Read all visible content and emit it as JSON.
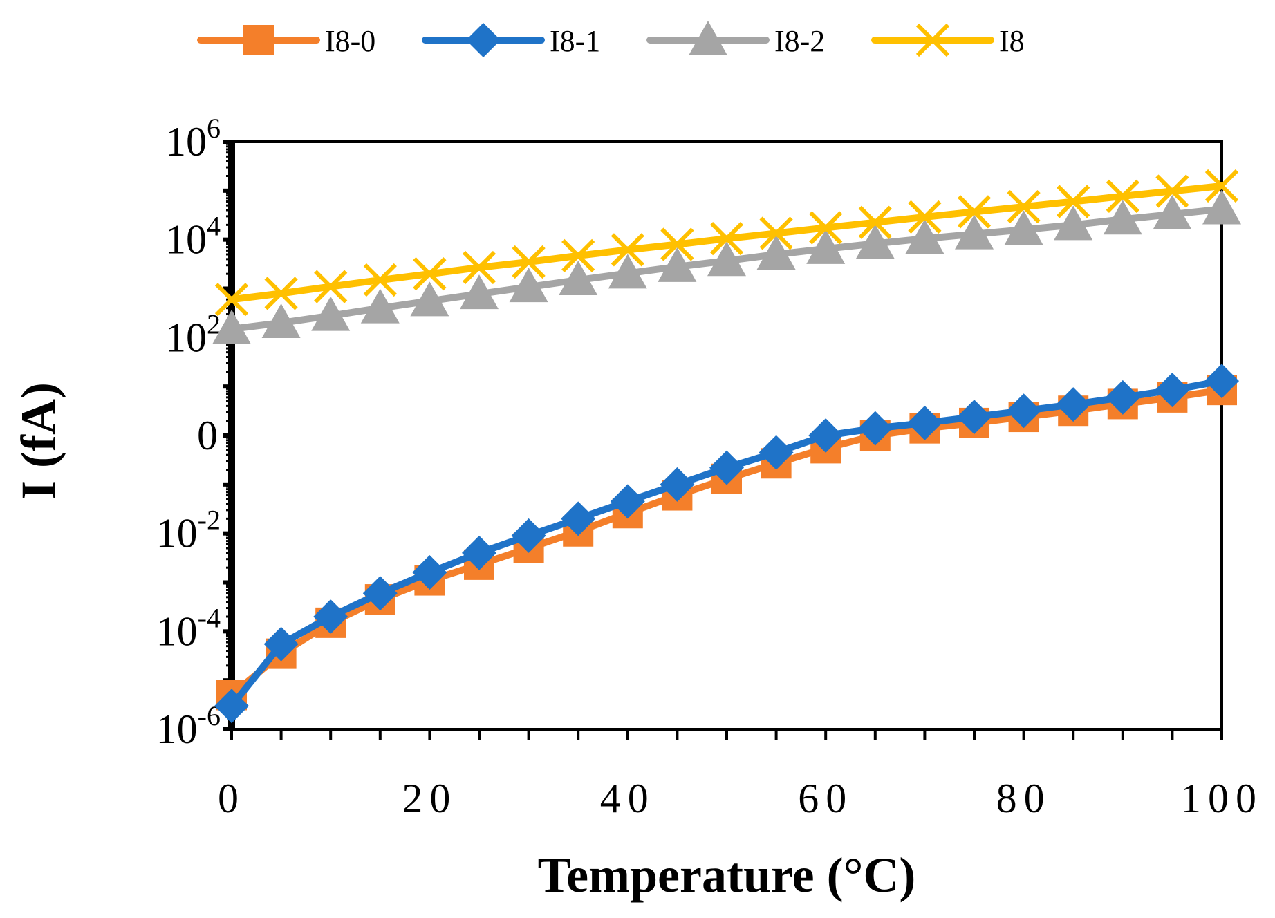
{
  "chart_data": {
    "type": "line",
    "xlabel": "Temperature (°C)",
    "ylabel": "I (fA)",
    "xlim": [
      0,
      100
    ],
    "ylim": [
      1e-06,
      1000000.0
    ],
    "yscale": "log",
    "grid": false,
    "legend_position": "top",
    "x_ticks": [
      "0",
      "20",
      "40",
      "60",
      "80",
      "100"
    ],
    "y_ticks": [
      {
        "base": "10",
        "exp": "6"
      },
      {
        "base": "10",
        "exp": "4"
      },
      {
        "base": "10",
        "exp": "2"
      },
      {
        "base": "0",
        "exp": ""
      },
      {
        "base": "10",
        "exp": "-2"
      },
      {
        "base": "10",
        "exp": "-4"
      },
      {
        "base": "10",
        "exp": "-6"
      }
    ],
    "x": [
      0,
      5,
      10,
      15,
      20,
      25,
      30,
      35,
      40,
      45,
      50,
      55,
      60,
      65,
      70,
      75,
      80,
      85,
      90,
      95,
      100
    ],
    "series": [
      {
        "name": "I8-0",
        "color": "#F47F2A",
        "marker": "square",
        "values": [
          5e-06,
          3.5e-05,
          0.00015,
          0.00045,
          0.0011,
          0.0023,
          0.005,
          0.011,
          0.026,
          0.06,
          0.13,
          0.27,
          0.55,
          1.0,
          1.4,
          1.8,
          2.4,
          3.2,
          4.4,
          6.0,
          8.5
        ]
      },
      {
        "name": "I8-1",
        "color": "#1F73C8",
        "marker": "diamond",
        "values": [
          3e-06,
          5.5e-05,
          0.0002,
          0.0006,
          0.0016,
          0.004,
          0.009,
          0.02,
          0.045,
          0.1,
          0.22,
          0.45,
          1.0,
          1.4,
          1.8,
          2.4,
          3.2,
          4.3,
          6.0,
          8.5,
          13
        ]
      },
      {
        "name": "I8-2",
        "color": "#A5A5A5",
        "marker": "triangle",
        "values": [
          150,
          200,
          280,
          400,
          560,
          780,
          1080,
          1500,
          2050,
          2800,
          3700,
          5000,
          6500,
          8300,
          10500,
          13000,
          16000,
          20000,
          26000,
          33000,
          42000
        ]
      },
      {
        "name": "I8",
        "color": "#FFC000",
        "marker": "x",
        "values": [
          600,
          800,
          1100,
          1500,
          2000,
          2700,
          3500,
          4700,
          6200,
          8000,
          10500,
          13500,
          17500,
          22500,
          29000,
          37000,
          47000,
          60000,
          77000,
          98000,
          125000
        ]
      }
    ]
  }
}
